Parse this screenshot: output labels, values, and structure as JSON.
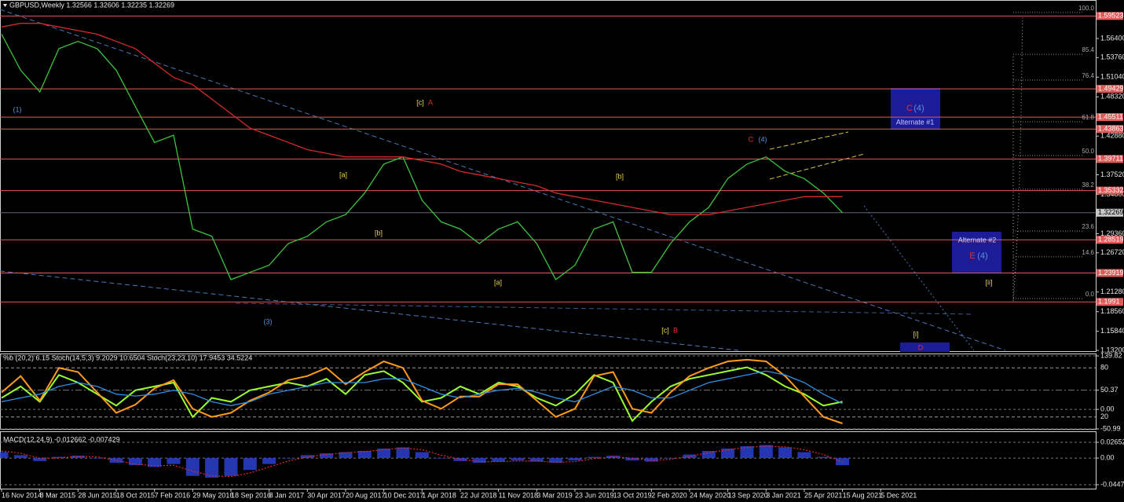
{
  "chart_data": [
    {
      "type": "line",
      "title": "GBPUSD,Weekly  1.32566 1.32606 1.32235 1.32269",
      "x": [
        0,
        8,
        16,
        24,
        32,
        40,
        48,
        56,
        64,
        72,
        80,
        88,
        96,
        104,
        112,
        120,
        128,
        136,
        144,
        152,
        160,
        168,
        176,
        184,
        192,
        200,
        208,
        216,
        224,
        232,
        240,
        248,
        256,
        264,
        272,
        280,
        288,
        296,
        304,
        312,
        320,
        328,
        336,
        344,
        352
      ],
      "xlim": [
        0,
        458
      ],
      "xticks": [
        {
          "value": 0,
          "label": "16 Nov 2014"
        },
        {
          "value": 16,
          "label": "8 Mar 2015"
        },
        {
          "value": 32,
          "label": "28 Jun 2015"
        },
        {
          "value": 48,
          "label": "18 Oct 2015"
        },
        {
          "value": 64,
          "label": "7 Feb 2016"
        },
        {
          "value": 80,
          "label": "29 May 2016"
        },
        {
          "value": 96,
          "label": "18 Sep 2016"
        },
        {
          "value": 112,
          "label": "8 Jan 2017"
        },
        {
          "value": 128,
          "label": "30 Apr 2017"
        },
        {
          "value": 144,
          "label": "20 Aug 2017"
        },
        {
          "value": 160,
          "label": "10 Dec 2017"
        },
        {
          "value": 176,
          "label": "1 Apr 2018"
        },
        {
          "value": 192,
          "label": "22 Jul 2018"
        },
        {
          "value": 208,
          "label": "11 Nov 2018"
        },
        {
          "value": 224,
          "label": "3 Mar 2019"
        },
        {
          "value": 240,
          "label": "23 Jun 2019"
        },
        {
          "value": 256,
          "label": "13 Oct 2019"
        },
        {
          "value": 272,
          "label": "2 Feb 2020"
        },
        {
          "value": 288,
          "label": "24 May 2020"
        },
        {
          "value": 304,
          "label": "13 Sep 2020"
        },
        {
          "value": 320,
          "label": "3 Jan 2021"
        },
        {
          "value": 336,
          "label": "25 Apr 2021"
        },
        {
          "value": 352,
          "label": "15 Aug 2021"
        },
        {
          "value": 368,
          "label": "5 Dec 2021"
        }
      ],
      "ylim": [
        1.1309,
        1.6021
      ],
      "yticks": [
        {
          "value": 1.564,
          "label": "1.56400"
        },
        {
          "value": 1.5376,
          "label": "1.53760"
        },
        {
          "value": 1.5104,
          "label": "1.51040"
        },
        {
          "value": 1.4832,
          "label": "1.48320"
        },
        {
          "value": 1.4288,
          "label": "1.42880"
        },
        {
          "value": 1.3752,
          "label": "1.37520"
        },
        {
          "value": 1.348,
          "label": "1.34800"
        },
        {
          "value": 1.2936,
          "label": "1.29360"
        },
        {
          "value": 1.2672,
          "label": "1.26720"
        },
        {
          "value": 1.2128,
          "label": "1.21280"
        },
        {
          "value": 1.1856,
          "label": "1.18560"
        },
        {
          "value": 1.1584,
          "label": "1.15840"
        },
        {
          "value": 1.132,
          "label": "1.13200"
        }
      ],
      "levels": [
        1.59523,
        1.49429,
        1.45511,
        1.43863,
        1.39711,
        1.35332,
        1.28519,
        1.23919,
        1.1991
      ],
      "level_color": "#e05a5a",
      "last_price": 1.32269,
      "fib_levels": [
        {
          "value": 100,
          "label": "100.0"
        },
        {
          "value": 85.4,
          "label": "85.4"
        },
        {
          "value": 76.4,
          "label": "76.4"
        },
        {
          "value": 61.8,
          "label": "61.8"
        },
        {
          "value": 50,
          "label": "50.0"
        },
        {
          "value": 38.2,
          "label": "38.2"
        },
        {
          "value": 23.6,
          "label": "23.6"
        },
        {
          "value": 14.6,
          "label": "14.6"
        },
        {
          "value": 0,
          "label": "0.0"
        }
      ],
      "fib_range": [
        1.2038,
        1.6
      ],
      "series": [
        {
          "name": "Close",
          "color": "#3cc43c",
          "values": [
            1.57,
            1.52,
            1.49,
            1.55,
            1.56,
            1.55,
            1.52,
            1.47,
            1.42,
            1.43,
            1.3,
            1.29,
            1.23,
            1.24,
            1.25,
            1.28,
            1.29,
            1.31,
            1.32,
            1.35,
            1.39,
            1.4,
            1.34,
            1.31,
            1.3,
            1.28,
            1.3,
            1.31,
            1.28,
            1.23,
            1.25,
            1.3,
            1.31,
            1.24,
            1.24,
            1.28,
            1.31,
            1.33,
            1.37,
            1.39,
            1.4,
            1.38,
            1.37,
            1.35,
            1.32269
          ]
        },
        {
          "name": "MA",
          "color": "#d42a2a",
          "values": [
            1.58,
            1.585,
            1.585,
            1.58,
            1.575,
            1.57,
            1.56,
            1.55,
            1.53,
            1.51,
            1.5,
            1.48,
            1.46,
            1.44,
            1.43,
            1.42,
            1.41,
            1.405,
            1.4,
            1.4,
            1.4,
            1.4,
            1.395,
            1.39,
            1.38,
            1.375,
            1.37,
            1.365,
            1.36,
            1.35,
            1.345,
            1.34,
            1.335,
            1.33,
            1.325,
            1.32,
            1.32,
            1.32,
            1.325,
            1.33,
            1.335,
            1.34,
            1.345,
            1.345,
            1.345
          ]
        }
      ],
      "annotations": [
        "(1)",
        "(3)",
        "[c]",
        "A",
        "[a]",
        "[b]",
        "[a]",
        "[b]",
        "C",
        "(4)",
        "[c]",
        "B",
        "[i]",
        "[ii]",
        "D",
        "C",
        "(4)",
        "Alternate #1",
        "Alternate #2",
        "E",
        "(4)"
      ]
    },
    {
      "type": "line",
      "title": "%b (20,2) 6.15 Stoch(14,5,3) 9.2029 10.6504 Stoch(23,23,10) 17.9453 34.5224",
      "x": [
        0,
        8,
        16,
        24,
        32,
        40,
        48,
        56,
        64,
        72,
        80,
        88,
        96,
        104,
        112,
        120,
        128,
        136,
        144,
        152,
        160,
        168,
        176,
        184,
        192,
        200,
        208,
        216,
        224,
        232,
        240,
        248,
        256,
        264,
        272,
        280,
        288,
        296,
        304,
        312,
        320,
        328,
        336,
        344,
        352
      ],
      "xlim": [
        0,
        458
      ],
      "ylim": [
        -50.99,
        139.82
      ],
      "yticks": [
        139.82,
        50.37,
        {
          "value": 0,
          "label": "0.00"
        },
        -50.99
      ],
      "y2lim": [
        5.3,
        94.7
      ],
      "y2ticks": [
        80,
        20
      ],
      "series": [
        {
          "name": "%b",
          "color": "#9aff2e",
          "values": [
            30,
            60,
            20,
            90,
            70,
            40,
            10,
            50,
            60,
            70,
            -20,
            30,
            20,
            50,
            60,
            70,
            60,
            80,
            40,
            90,
            100,
            70,
            20,
            30,
            60,
            40,
            70,
            60,
            30,
            10,
            40,
            90,
            70,
            -30,
            20,
            60,
            80,
            90,
            100,
            110,
            90,
            60,
            40,
            10,
            20
          ]
        },
        {
          "name": "Stoch",
          "color": "#ff9a1a",
          "axis": "y2",
          "values": [
            50,
            70,
            40,
            80,
            75,
            50,
            25,
            35,
            55,
            65,
            30,
            20,
            25,
            40,
            50,
            65,
            70,
            80,
            60,
            75,
            88,
            80,
            40,
            30,
            45,
            45,
            60,
            60,
            40,
            20,
            30,
            70,
            75,
            30,
            25,
            50,
            70,
            80,
            88,
            90,
            88,
            70,
            45,
            20,
            12
          ]
        },
        {
          "name": "Signal",
          "color": "#2f8fe0",
          "values": [
            20,
            30,
            40,
            60,
            70,
            60,
            40,
            35,
            40,
            50,
            40,
            20,
            10,
            20,
            40,
            50,
            60,
            70,
            70,
            70,
            80,
            80,
            60,
            40,
            30,
            40,
            50,
            55,
            45,
            30,
            20,
            40,
            60,
            50,
            30,
            30,
            50,
            70,
            80,
            90,
            100,
            90,
            70,
            40,
            15
          ]
        }
      ]
    },
    {
      "type": "bar",
      "title": "MACD(12,24,9) -0.012662 -0.007429",
      "x": [
        0,
        8,
        16,
        24,
        32,
        40,
        48,
        56,
        64,
        72,
        80,
        88,
        96,
        104,
        112,
        120,
        128,
        136,
        144,
        152,
        160,
        168,
        176,
        184,
        192,
        200,
        208,
        216,
        224,
        232,
        240,
        248,
        256,
        264,
        272,
        280,
        288,
        296,
        304,
        312,
        320,
        328,
        336,
        344,
        352
      ],
      "xlim": [
        0,
        458
      ],
      "ylim": [
        -0.0501,
        0.0424
      ],
      "yticks": [
        0.026521,
        {
          "value": 0,
          "label": "0.00"
        },
        -0.044748
      ],
      "series": [
        {
          "name": "MACD",
          "color": "#2b3fd0",
          "kind": "bar",
          "values": [
            0.01,
            0.005,
            -0.005,
            0.002,
            0.004,
            0.0,
            -0.008,
            -0.012,
            -0.015,
            -0.01,
            -0.03,
            -0.033,
            -0.03,
            -0.02,
            -0.01,
            0.0,
            0.005,
            0.008,
            0.01,
            0.012,
            0.016,
            0.018,
            0.01,
            0.0,
            -0.005,
            -0.008,
            -0.006,
            -0.004,
            -0.006,
            -0.008,
            -0.004,
            0.002,
            0.004,
            -0.004,
            -0.006,
            0.0,
            0.006,
            0.012,
            0.016,
            0.02,
            0.022,
            0.018,
            0.01,
            0.002,
            -0.012
          ]
        },
        {
          "name": "Signal",
          "color": "#e02a2a",
          "kind": "line",
          "values": [
            0.012,
            0.008,
            0.0,
            0.0,
            0.003,
            0.002,
            -0.004,
            -0.01,
            -0.013,
            -0.012,
            -0.022,
            -0.03,
            -0.031,
            -0.025,
            -0.015,
            -0.005,
            0.002,
            0.006,
            0.009,
            0.011,
            0.014,
            0.017,
            0.014,
            0.005,
            -0.002,
            -0.006,
            -0.006,
            -0.005,
            -0.005,
            -0.007,
            -0.006,
            -0.001,
            0.002,
            0.0,
            -0.004,
            -0.002,
            0.003,
            0.009,
            0.014,
            0.018,
            0.02,
            0.019,
            0.014,
            0.006,
            -0.007
          ]
        }
      ]
    }
  ]
}
